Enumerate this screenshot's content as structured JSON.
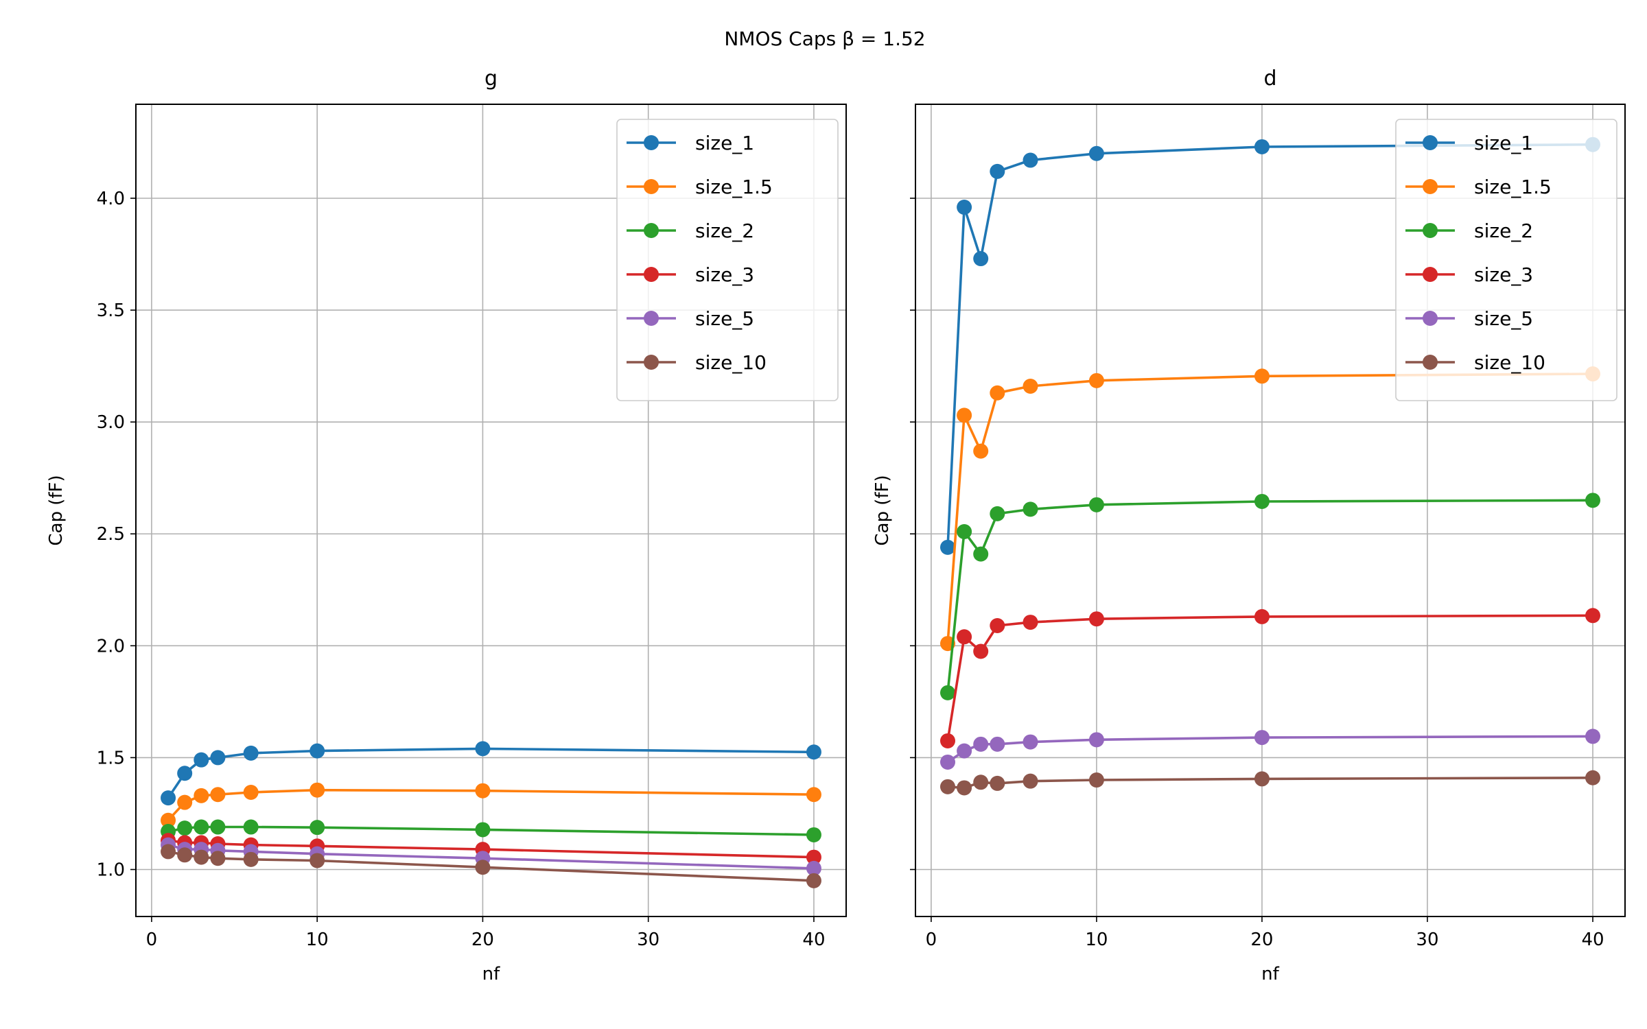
{
  "figure": {
    "suptitle": "NMOS Caps β = 1.52"
  },
  "chart_data": [
    {
      "type": "line",
      "title": "g",
      "xlabel": "nf",
      "ylabel": "Cap (fF)",
      "xlim": [
        -0.95,
        41.95
      ],
      "ylim": [
        0.79,
        4.42
      ],
      "xticks": [
        "0",
        "10",
        "20",
        "30",
        "40"
      ],
      "yticks": [
        "1.0",
        "1.5",
        "2.0",
        "2.5",
        "3.0",
        "3.5",
        "4.0"
      ],
      "grid": true,
      "legend_position": "top-right",
      "x": [
        1,
        2,
        3,
        4,
        6,
        10,
        20,
        40
      ],
      "series": [
        {
          "name": "size_1",
          "color": "#1f77b4",
          "values": [
            1.32,
            1.43,
            1.49,
            1.5,
            1.52,
            1.53,
            1.54,
            1.525
          ]
        },
        {
          "name": "size_1.5",
          "color": "#ff7f0e",
          "values": [
            1.22,
            1.3,
            1.33,
            1.335,
            1.345,
            1.355,
            1.352,
            1.335
          ]
        },
        {
          "name": "size_2",
          "color": "#2ca02c",
          "values": [
            1.17,
            1.185,
            1.19,
            1.19,
            1.19,
            1.188,
            1.178,
            1.155
          ]
        },
        {
          "name": "size_3",
          "color": "#d62728",
          "values": [
            1.13,
            1.12,
            1.12,
            1.115,
            1.11,
            1.105,
            1.09,
            1.055
          ]
        },
        {
          "name": "size_5",
          "color": "#9467bd",
          "values": [
            1.11,
            1.09,
            1.09,
            1.085,
            1.08,
            1.07,
            1.05,
            1.005
          ]
        },
        {
          "name": "size_10",
          "color": "#8c564b",
          "values": [
            1.08,
            1.065,
            1.055,
            1.05,
            1.045,
            1.04,
            1.01,
            0.95
          ]
        }
      ]
    },
    {
      "type": "line",
      "title": "d",
      "xlabel": "nf",
      "ylabel": "Cap (fF)",
      "xlim": [
        -0.95,
        41.95
      ],
      "ylim": [
        0.79,
        4.42
      ],
      "xticks": [
        "0",
        "10",
        "20",
        "30",
        "40"
      ],
      "yticks": [],
      "grid": true,
      "legend_position": "top-right",
      "x": [
        1,
        2,
        3,
        4,
        6,
        10,
        20,
        40
      ],
      "series": [
        {
          "name": "size_1",
          "color": "#1f77b4",
          "values": [
            2.44,
            3.96,
            3.73,
            4.12,
            4.17,
            4.2,
            4.23,
            4.24
          ]
        },
        {
          "name": "size_1.5",
          "color": "#ff7f0e",
          "values": [
            2.01,
            3.03,
            2.87,
            3.13,
            3.16,
            3.185,
            3.205,
            3.215
          ]
        },
        {
          "name": "size_2",
          "color": "#2ca02c",
          "values": [
            1.79,
            2.51,
            2.41,
            2.59,
            2.61,
            2.63,
            2.645,
            2.65
          ]
        },
        {
          "name": "size_3",
          "color": "#d62728",
          "values": [
            1.575,
            2.04,
            1.975,
            2.09,
            2.105,
            2.12,
            2.13,
            2.135
          ]
        },
        {
          "name": "size_5",
          "color": "#9467bd",
          "values": [
            1.48,
            1.53,
            1.56,
            1.56,
            1.57,
            1.58,
            1.59,
            1.595
          ]
        },
        {
          "name": "size_10",
          "color": "#8c564b",
          "values": [
            1.37,
            1.365,
            1.39,
            1.385,
            1.395,
            1.4,
            1.405,
            1.41
          ]
        }
      ]
    }
  ]
}
